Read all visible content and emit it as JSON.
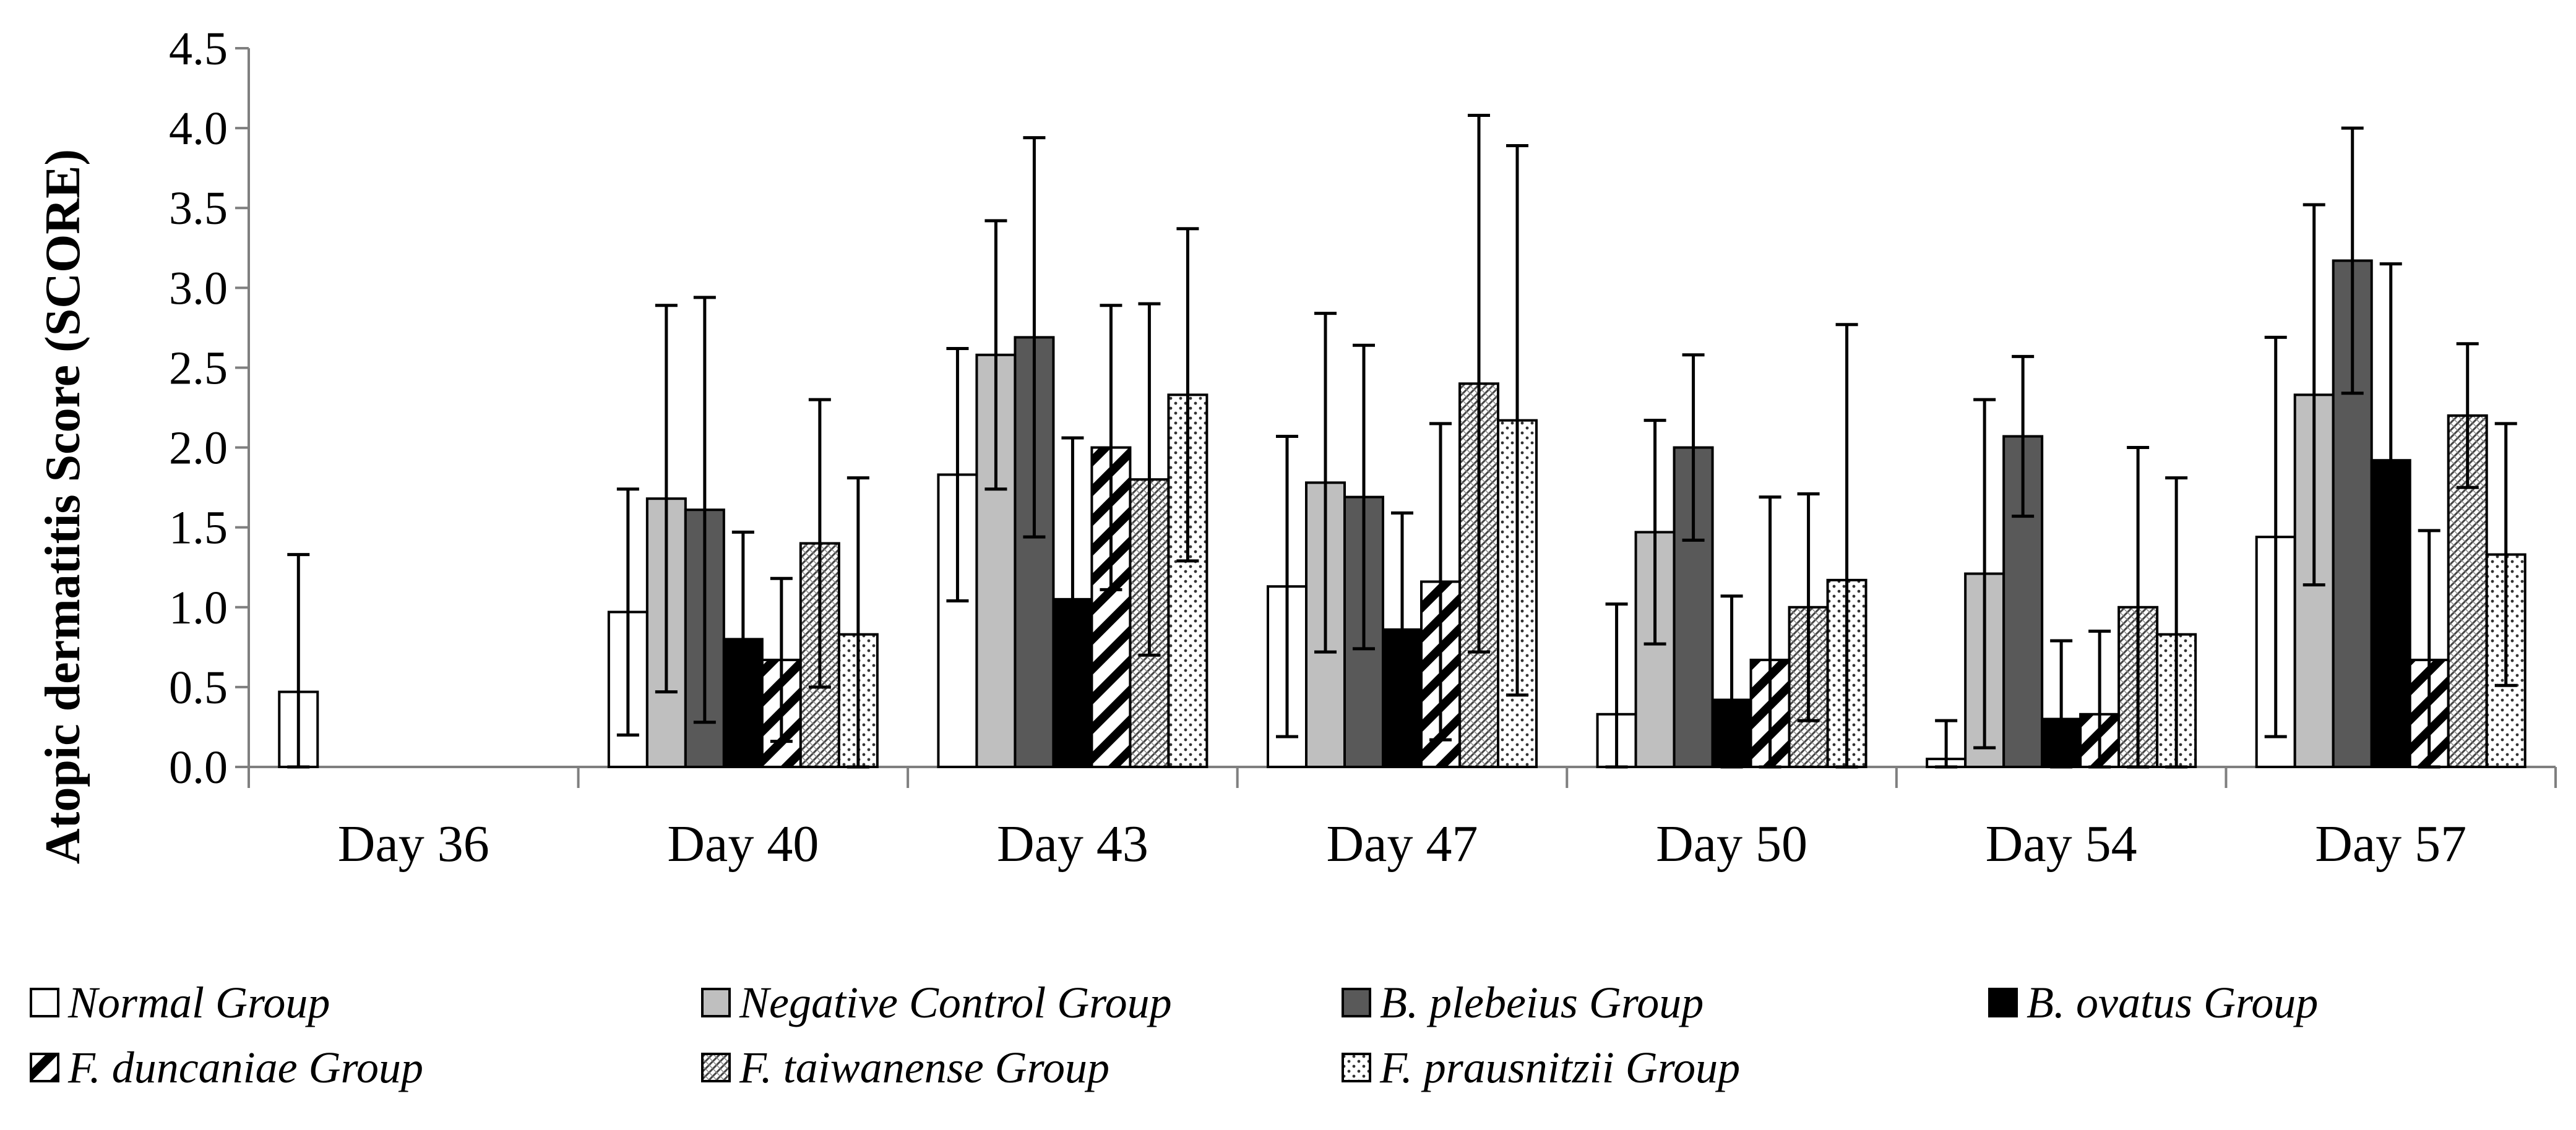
{
  "chart_data": {
    "type": "bar",
    "title": "",
    "xlabel": "",
    "ylabel": "Atopic dermatitis Score (SCORE)",
    "ylim": [
      0,
      4.5
    ],
    "ytick_step": 0.5,
    "ytick_labels": [
      "0.0",
      "0.5",
      "1.0",
      "1.5",
      "2.0",
      "2.5",
      "3.0",
      "3.5",
      "4.0",
      "4.5"
    ],
    "grid": false,
    "legend_position": "bottom",
    "categories": [
      "Day 36",
      "Day 40",
      "Day 43",
      "Day 47",
      "Day 50",
      "Day 54",
      "Day 57"
    ],
    "series": [
      {
        "name": "Normal Group",
        "pattern": "white",
        "values": [
          0.47,
          0.97,
          1.83,
          1.13,
          0.33,
          0.05,
          1.44
        ],
        "errors": [
          0.86,
          0.77,
          0.79,
          0.94,
          0.69,
          0.24,
          1.25
        ]
      },
      {
        "name": "Negative Control Group",
        "pattern": "lightgray",
        "values": [
          0,
          1.68,
          2.58,
          1.78,
          1.47,
          1.21,
          2.33
        ],
        "errors": [
          0,
          1.21,
          0.84,
          1.06,
          0.7,
          1.09,
          1.19
        ]
      },
      {
        "name": "B. plebeius Group",
        "pattern": "darkgray",
        "values": [
          0,
          1.61,
          2.69,
          1.69,
          2.0,
          2.07,
          3.17
        ],
        "errors": [
          0,
          1.33,
          1.25,
          0.95,
          0.58,
          0.5,
          0.83
        ]
      },
      {
        "name": "B. ovatus Group",
        "pattern": "black",
        "values": [
          0,
          0.8,
          1.05,
          0.86,
          0.42,
          0.3,
          1.92
        ],
        "errors": [
          0,
          0.67,
          1.01,
          0.73,
          0.65,
          0.49,
          1.23
        ]
      },
      {
        "name": "F. duncaniae Group",
        "pattern": "diagonal",
        "values": [
          0,
          0.67,
          2.0,
          1.16,
          0.67,
          0.33,
          0.67
        ],
        "errors": [
          0,
          0.51,
          0.89,
          0.99,
          1.02,
          0.52,
          0.81
        ]
      },
      {
        "name": "F. taiwanense Group",
        "pattern": "crosshatch",
        "values": [
          0,
          1.4,
          1.8,
          2.4,
          1.0,
          1.0,
          2.2
        ],
        "errors": [
          0,
          0.9,
          1.1,
          1.68,
          0.71,
          1.0,
          0.45
        ]
      },
      {
        "name": "F. prausnitzii Group",
        "pattern": "dots",
        "values": [
          0,
          0.83,
          2.33,
          2.17,
          1.17,
          0.83,
          1.33
        ],
        "errors": [
          0,
          0.98,
          1.04,
          1.72,
          1.6,
          0.98,
          0.82
        ]
      }
    ]
  }
}
